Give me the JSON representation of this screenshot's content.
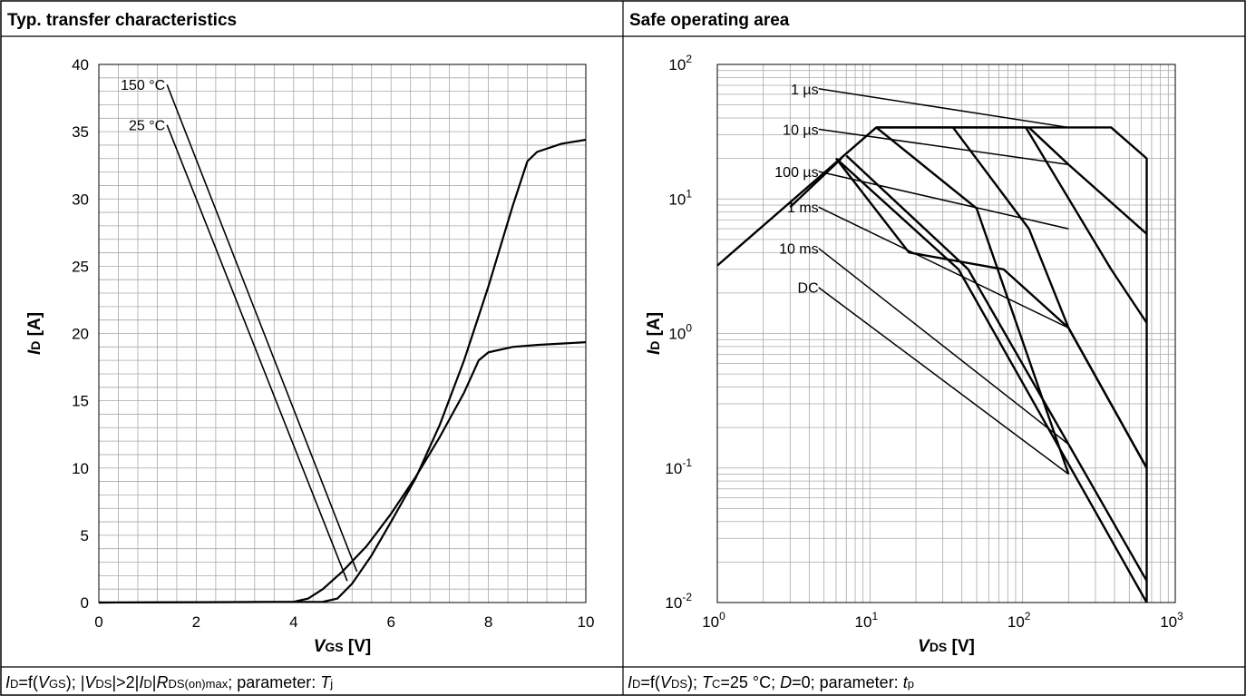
{
  "panels": [
    {
      "title": "Typ. transfer characteristics",
      "caption": {
        "parts": [
          [
            "I",
            "i"
          ],
          [
            "D",
            "s"
          ],
          [
            "=f(",
            "n"
          ],
          [
            "V",
            "i"
          ],
          [
            "GS",
            "s"
          ],
          [
            "); |",
            "n"
          ],
          [
            "V",
            "i"
          ],
          [
            "DS",
            "s"
          ],
          [
            "|>2|",
            "n"
          ],
          [
            "I",
            "i"
          ],
          [
            "D",
            "s"
          ],
          [
            "|",
            "n"
          ],
          [
            "R",
            "i"
          ],
          [
            "DS(on)max",
            "s"
          ],
          [
            "; parameter: ",
            "n"
          ],
          [
            "T",
            "i"
          ],
          [
            "j",
            "s"
          ]
        ]
      }
    },
    {
      "title": "Safe operating area",
      "caption": {
        "parts": [
          [
            "I",
            "i"
          ],
          [
            "D",
            "s"
          ],
          [
            "=f(",
            "n"
          ],
          [
            "V",
            "i"
          ],
          [
            "DS",
            "s"
          ],
          [
            "); ",
            "n"
          ],
          [
            "T",
            "i"
          ],
          [
            "C",
            "s"
          ],
          [
            "=25 °C; ",
            "n"
          ],
          [
            "D",
            "i"
          ],
          [
            "=0; parameter: ",
            "n"
          ],
          [
            "t",
            "i"
          ],
          [
            "p",
            "s"
          ]
        ]
      }
    }
  ],
  "chart_data": [
    {
      "type": "line",
      "title": "Typ. transfer characteristics",
      "xlabel": {
        "main": "V",
        "sub": "GS",
        "unit": " [V]"
      },
      "ylabel": {
        "main": "I",
        "sub": "D",
        "unit": " [A]"
      },
      "xlim": [
        0,
        10
      ],
      "ylim": [
        0,
        40
      ],
      "x_ticks": [
        0,
        2,
        4,
        6,
        8,
        10
      ],
      "y_ticks": [
        0,
        5,
        10,
        15,
        20,
        25,
        30,
        35,
        40
      ],
      "grid": true,
      "series": [
        {
          "name": "150 °C",
          "x": [
            0,
            4.0,
            4.3,
            4.6,
            5.0,
            5.5,
            6.0,
            6.5,
            7.0,
            7.5,
            7.8,
            8.0,
            8.5,
            9.0,
            9.5,
            10
          ],
          "y": [
            0,
            0.05,
            0.3,
            1.0,
            2.3,
            4.2,
            6.6,
            9.3,
            12.3,
            15.6,
            18.0,
            18.6,
            19.0,
            19.15,
            19.25,
            19.35
          ]
        },
        {
          "name": "25 °C",
          "x": [
            0,
            4.6,
            4.9,
            5.2,
            5.6,
            6.0,
            6.5,
            7.0,
            7.5,
            8.0,
            8.5,
            8.8,
            9.0,
            9.5,
            10
          ],
          "y": [
            0,
            0.05,
            0.3,
            1.4,
            3.5,
            6.0,
            9.2,
            13.2,
            18.0,
            23.5,
            29.5,
            32.8,
            33.5,
            34.1,
            34.4
          ]
        }
      ],
      "annotations": [
        {
          "text": "150 °C",
          "x": 1.4,
          "y": 38.5,
          "x_end": 5.3,
          "y_end": 2.3
        },
        {
          "text": "25 °C",
          "x": 1.4,
          "y": 35.5,
          "x_end": 5.1,
          "y_end": 1.6
        }
      ]
    },
    {
      "type": "line",
      "title": "Safe operating area",
      "xlabel": {
        "main": "V",
        "sub": "DS",
        "unit": " [V]"
      },
      "ylabel": {
        "main": "I",
        "sub": "D",
        "unit": " [A]"
      },
      "xscale": "log",
      "yscale": "log",
      "xlim": [
        1,
        1000
      ],
      "ylim": [
        0.01,
        100
      ],
      "x_ticks": [
        {
          "base": "10",
          "exp": "0"
        },
        {
          "base": "10",
          "exp": "1"
        },
        {
          "base": "10",
          "exp": "2"
        },
        {
          "base": "10",
          "exp": "3"
        }
      ],
      "y_ticks": [
        {
          "base": "10",
          "exp": "-2"
        },
        {
          "base": "10",
          "exp": "-1"
        },
        {
          "base": "10",
          "exp": "0"
        },
        {
          "base": "10",
          "exp": "1"
        },
        {
          "base": "10",
          "exp": "2"
        }
      ],
      "grid": true,
      "series": [
        {
          "name": "1 µs",
          "x": [
            1,
            11,
            380,
            650,
            650
          ],
          "y": [
            3.2,
            34,
            34,
            20,
            0.01
          ]
        },
        {
          "name": "10 µs",
          "x": [
            11,
            35,
            105,
            380,
            650
          ],
          "y": [
            34,
            34,
            34,
            3.0,
            1.2
          ]
        },
        {
          "name": "100 µs",
          "x": [
            6,
            18,
            75,
            200,
            650
          ],
          "y": [
            20,
            4.0,
            3.0,
            1.1,
            0.1
          ]
        },
        {
          "name": "1 ms",
          "x": [
            7,
            44,
            200,
            650
          ],
          "y": [
            21,
            3.0,
            0.15,
            0.0145
          ]
        },
        {
          "name": "10 ms",
          "x": [
            6,
            38,
            650
          ],
          "y": [
            20,
            3.0,
            0.01
          ]
        },
        {
          "name": "DC",
          "x": [
            3.0,
            6.5
          ],
          "y": [
            8.7,
            20
          ]
        },
        {
          "name": "",
          "x": [
            35,
            110,
            200,
            650
          ],
          "y": [
            34,
            6.0,
            1.1,
            0.1
          ]
        },
        {
          "name": "",
          "x": [
            110,
            200,
            650
          ],
          "y": [
            34,
            18,
            5.5
          ]
        },
        {
          "name": "",
          "x": [
            11,
            50,
            200
          ],
          "y": [
            34,
            8.5,
            0.09
          ]
        }
      ],
      "annotations": [
        {
          "text": "1 µs",
          "x": 1.5,
          "y": 66,
          "x_end": 200,
          "y_end": 34
        },
        {
          "text": "10 µs",
          "x": 1.5,
          "y": 33,
          "x_end": 200,
          "y_end": 18
        },
        {
          "text": "100 µs",
          "x": 1.5,
          "y": 16,
          "x_end": 200,
          "y_end": 6.0
        },
        {
          "text": "1 ms",
          "x": 1.5,
          "y": 8.7,
          "x_end": 200,
          "y_end": 1.1
        },
        {
          "text": "10 ms",
          "x": 1.5,
          "y": 4.3,
          "x_end": 200,
          "y_end": 0.15
        },
        {
          "text": "DC",
          "x": 1.5,
          "y": 2.2,
          "x_end": 200,
          "y_end": 0.09
        }
      ]
    }
  ]
}
